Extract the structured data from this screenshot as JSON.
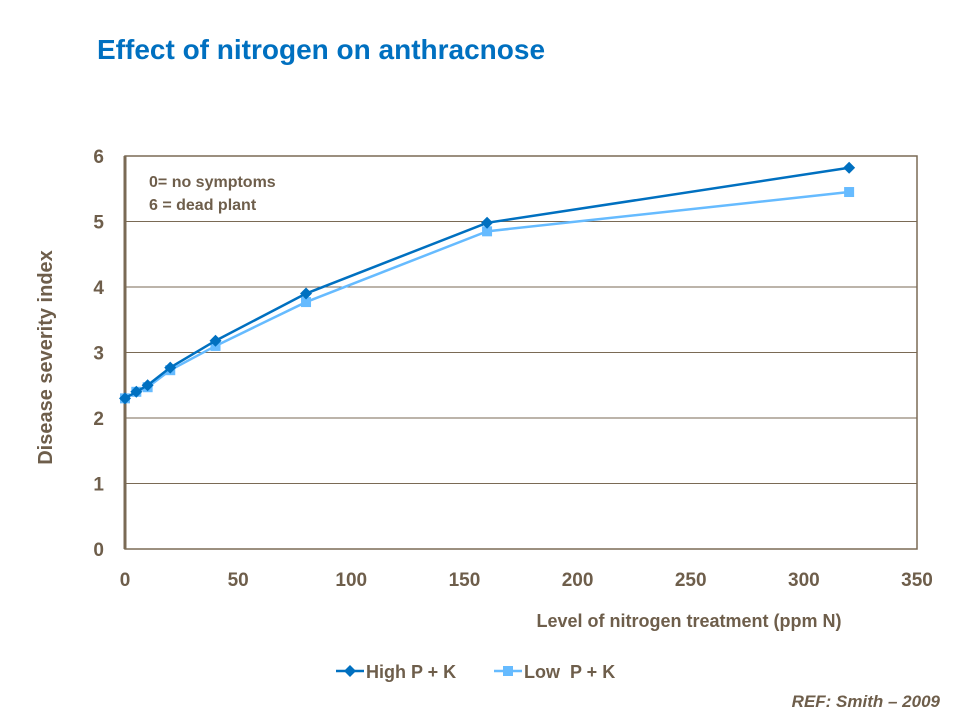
{
  "chart_data": {
    "type": "line",
    "title": "Effect of nitrogen on anthracnose",
    "xlabel": "Level of nitrogen treatment (ppm N)",
    "ylabel": "Disease severity index",
    "xlim": [
      0,
      350
    ],
    "ylim": [
      0,
      6
    ],
    "xticks": [
      0,
      50,
      100,
      150,
      200,
      250,
      300,
      350
    ],
    "yticks": [
      0,
      1,
      2,
      3,
      4,
      5,
      6
    ],
    "grid": "horizontal",
    "legend": "bottom",
    "annotations": [
      "0= no symptoms",
      "6 = dead plant"
    ],
    "x": [
      0,
      5,
      10,
      20,
      40,
      80,
      160,
      320
    ],
    "series": [
      {
        "name": "High P + K",
        "color": "#0070C0",
        "marker": "diamond",
        "values": [
          2.3,
          2.4,
          2.5,
          2.77,
          3.18,
          3.9,
          4.98,
          5.82
        ]
      },
      {
        "name": "Low  P + K",
        "color": "#66BBFF",
        "marker": "square",
        "values": [
          2.3,
          2.4,
          2.47,
          2.73,
          3.1,
          3.77,
          4.85,
          5.45
        ]
      }
    ]
  },
  "reference": "REF: Smith – 2009"
}
